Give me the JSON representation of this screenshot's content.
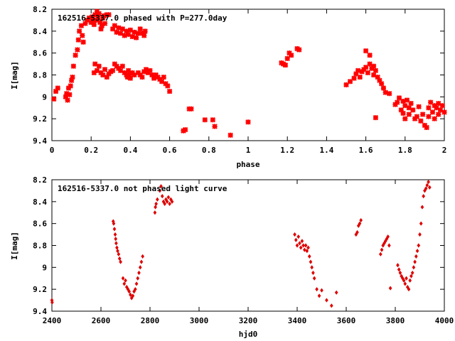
{
  "chart_data": [
    {
      "type": "scatter",
      "title": "162516-5337.0 phased with P=277.0day",
      "xlabel": "phase",
      "ylabel": "I[mag]",
      "xlim": [
        0,
        2
      ],
      "ylim": [
        9.4,
        8.2
      ],
      "y_inverted": true,
      "xticks": [
        "0",
        "0.2",
        "0.4",
        "0.6",
        "0.8",
        "1",
        "1.2",
        "1.4",
        "1.6",
        "1.8",
        "2"
      ],
      "yticks": [
        "8.2",
        "8.4",
        "8.6",
        "8.8",
        "9",
        "9.2",
        "9.4"
      ],
      "marker_color": "#ff0000",
      "marker": "cross",
      "points": [
        [
          0.01,
          9.02
        ],
        [
          0.02,
          8.95
        ],
        [
          0.03,
          8.92
        ],
        [
          0.07,
          9.0
        ],
        [
          0.075,
          8.97
        ],
        [
          0.08,
          9.03
        ],
        [
          0.085,
          8.92
        ],
        [
          0.09,
          8.98
        ],
        [
          0.095,
          8.9
        ],
        [
          0.1,
          8.85
        ],
        [
          0.105,
          8.82
        ],
        [
          0.11,
          8.72
        ],
        [
          0.12,
          8.62
        ],
        [
          0.13,
          8.57
        ],
        [
          0.135,
          8.48
        ],
        [
          0.14,
          8.4
        ],
        [
          0.15,
          8.35
        ],
        [
          0.155,
          8.44
        ],
        [
          0.16,
          8.5
        ],
        [
          0.17,
          8.33
        ],
        [
          0.18,
          8.3
        ],
        [
          0.19,
          8.28
        ],
        [
          0.2,
          8.32
        ],
        [
          0.205,
          8.27
        ],
        [
          0.21,
          8.3
        ],
        [
          0.215,
          8.34
        ],
        [
          0.22,
          8.25
        ],
        [
          0.225,
          8.3
        ],
        [
          0.23,
          8.22
        ],
        [
          0.235,
          8.28
        ],
        [
          0.24,
          8.24
        ],
        [
          0.245,
          8.32
        ],
        [
          0.25,
          8.38
        ],
        [
          0.255,
          8.35
        ],
        [
          0.26,
          8.28
        ],
        [
          0.265,
          8.26
        ],
        [
          0.27,
          8.33
        ],
        [
          0.28,
          8.25
        ],
        [
          0.29,
          8.25
        ],
        [
          0.215,
          8.78
        ],
        [
          0.22,
          8.7
        ],
        [
          0.23,
          8.76
        ],
        [
          0.24,
          8.72
        ],
        [
          0.25,
          8.78
        ],
        [
          0.26,
          8.8
        ],
        [
          0.27,
          8.75
        ],
        [
          0.28,
          8.82
        ],
        [
          0.29,
          8.79
        ],
        [
          0.3,
          8.77
        ],
        [
          0.31,
          8.76
        ],
        [
          0.32,
          8.7
        ],
        [
          0.33,
          8.72
        ],
        [
          0.34,
          8.74
        ],
        [
          0.35,
          8.76
        ],
        [
          0.36,
          8.72
        ],
        [
          0.37,
          8.78
        ],
        [
          0.38,
          8.8
        ],
        [
          0.385,
          8.82
        ],
        [
          0.39,
          8.76
        ],
        [
          0.395,
          8.8
        ],
        [
          0.4,
          8.83
        ],
        [
          0.41,
          8.78
        ],
        [
          0.42,
          8.8
        ],
        [
          0.31,
          8.38
        ],
        [
          0.32,
          8.35
        ],
        [
          0.33,
          8.41
        ],
        [
          0.34,
          8.37
        ],
        [
          0.35,
          8.42
        ],
        [
          0.36,
          8.38
        ],
        [
          0.37,
          8.44
        ],
        [
          0.38,
          8.4
        ],
        [
          0.39,
          8.43
        ],
        [
          0.4,
          8.39
        ],
        [
          0.41,
          8.45
        ],
        [
          0.42,
          8.41
        ],
        [
          0.43,
          8.46
        ],
        [
          0.44,
          8.42
        ],
        [
          0.45,
          8.38
        ],
        [
          0.46,
          8.42
        ],
        [
          0.47,
          8.44
        ],
        [
          0.475,
          8.4
        ],
        [
          0.44,
          8.78
        ],
        [
          0.45,
          8.8
        ],
        [
          0.46,
          8.82
        ],
        [
          0.47,
          8.77
        ],
        [
          0.48,
          8.75
        ],
        [
          0.49,
          8.78
        ],
        [
          0.5,
          8.76
        ],
        [
          0.51,
          8.8
        ],
        [
          0.52,
          8.83
        ],
        [
          0.53,
          8.8
        ],
        [
          0.54,
          8.82
        ],
        [
          0.55,
          8.84
        ],
        [
          0.56,
          8.86
        ],
        [
          0.57,
          8.82
        ],
        [
          0.58,
          8.88
        ],
        [
          0.59,
          8.9
        ],
        [
          0.6,
          8.95
        ],
        [
          0.67,
          9.31
        ],
        [
          0.68,
          9.3
        ],
        [
          0.7,
          9.11
        ],
        [
          0.71,
          9.11
        ],
        [
          0.78,
          9.21
        ],
        [
          0.82,
          9.21
        ],
        [
          0.83,
          9.27
        ],
        [
          0.91,
          9.35
        ],
        [
          1.0,
          9.23
        ],
        [
          1.17,
          8.69
        ],
        [
          1.18,
          8.7
        ],
        [
          1.19,
          8.71
        ],
        [
          1.2,
          8.65
        ],
        [
          1.21,
          8.6
        ],
        [
          1.22,
          8.62
        ],
        [
          1.25,
          8.56
        ],
        [
          1.26,
          8.57
        ],
        [
          1.5,
          8.89
        ],
        [
          1.52,
          8.86
        ],
        [
          1.54,
          8.83
        ],
        [
          1.55,
          8.79
        ],
        [
          1.56,
          8.76
        ],
        [
          1.57,
          8.82
        ],
        [
          1.58,
          8.77
        ],
        [
          1.59,
          8.75
        ],
        [
          1.6,
          8.58
        ],
        [
          1.6,
          8.73
        ],
        [
          1.61,
          8.78
        ],
        [
          1.62,
          8.7
        ],
        [
          1.62,
          8.62
        ],
        [
          1.63,
          8.74
        ],
        [
          1.64,
          8.72
        ],
        [
          1.64,
          8.8
        ],
        [
          1.65,
          8.76
        ],
        [
          1.65,
          9.19
        ],
        [
          1.66,
          8.82
        ],
        [
          1.67,
          8.85
        ],
        [
          1.68,
          8.88
        ],
        [
          1.69,
          8.92
        ],
        [
          1.7,
          8.96
        ],
        [
          1.72,
          8.97
        ],
        [
          1.75,
          9.07
        ],
        [
          1.76,
          9.05
        ],
        [
          1.77,
          9.01
        ],
        [
          1.78,
          9.12
        ],
        [
          1.79,
          9.04
        ],
        [
          1.79,
          9.15
        ],
        [
          1.8,
          9.08
        ],
        [
          1.8,
          9.2
        ],
        [
          1.81,
          9.03
        ],
        [
          1.82,
          9.1
        ],
        [
          1.82,
          9.16
        ],
        [
          1.83,
          9.06
        ],
        [
          1.84,
          9.12
        ],
        [
          1.85,
          9.2
        ],
        [
          1.86,
          9.18
        ],
        [
          1.87,
          9.09
        ],
        [
          1.88,
          9.22
        ],
        [
          1.89,
          9.16
        ],
        [
          1.9,
          9.26
        ],
        [
          1.91,
          9.28
        ],
        [
          1.92,
          9.18
        ],
        [
          1.92,
          9.1
        ],
        [
          1.93,
          9.05
        ],
        [
          1.94,
          9.14
        ],
        [
          1.95,
          9.08
        ],
        [
          1.95,
          9.2
        ],
        [
          1.96,
          9.1
        ],
        [
          1.97,
          9.06
        ],
        [
          1.97,
          9.16
        ],
        [
          1.98,
          9.12
        ],
        [
          1.99,
          9.08
        ],
        [
          2.0,
          9.14
        ]
      ]
    },
    {
      "type": "scatter",
      "title": "162516-5337.0 not phased light curve",
      "xlabel": "hjd0",
      "ylabel": "I[mag]",
      "xlim": [
        2400,
        4000
      ],
      "ylim": [
        9.4,
        8.2
      ],
      "y_inverted": true,
      "xticks": [
        "2400",
        "2600",
        "2800",
        "3000",
        "3200",
        "3400",
        "3600",
        "3800",
        "4000"
      ],
      "yticks": [
        "8.2",
        "8.4",
        "8.6",
        "8.8",
        "9",
        "9.2",
        "9.4"
      ],
      "marker_color": "#dd0000",
      "marker": "diamond",
      "points": [
        [
          2400,
          9.3
        ],
        [
          2401,
          9.32
        ],
        [
          2650,
          8.58
        ],
        [
          2652,
          8.6
        ],
        [
          2655,
          8.65
        ],
        [
          2658,
          8.7
        ],
        [
          2660,
          8.74
        ],
        [
          2662,
          8.78
        ],
        [
          2665,
          8.82
        ],
        [
          2668,
          8.85
        ],
        [
          2672,
          8.88
        ],
        [
          2676,
          8.92
        ],
        [
          2680,
          8.95
        ],
        [
          2690,
          9.1
        ],
        [
          2695,
          9.15
        ],
        [
          2700,
          9.12
        ],
        [
          2705,
          9.18
        ],
        [
          2710,
          9.2
        ],
        [
          2715,
          9.22
        ],
        [
          2720,
          9.25
        ],
        [
          2725,
          9.28
        ],
        [
          2730,
          9.26
        ],
        [
          2735,
          9.22
        ],
        [
          2740,
          9.2
        ],
        [
          2745,
          9.15
        ],
        [
          2750,
          9.1
        ],
        [
          2755,
          9.05
        ],
        [
          2760,
          9.0
        ],
        [
          2765,
          8.95
        ],
        [
          2770,
          8.9
        ],
        [
          2820,
          8.5
        ],
        [
          2822,
          8.45
        ],
        [
          2825,
          8.42
        ],
        [
          2830,
          8.38
        ],
        [
          2840,
          8.3
        ],
        [
          2845,
          8.26
        ],
        [
          2850,
          8.35
        ],
        [
          2855,
          8.4
        ],
        [
          2860,
          8.42
        ],
        [
          2865,
          8.38
        ],
        [
          2870,
          8.4
        ],
        [
          2875,
          8.36
        ],
        [
          2880,
          8.42
        ],
        [
          2885,
          8.38
        ],
        [
          2890,
          8.4
        ],
        [
          3390,
          8.7
        ],
        [
          3395,
          8.75
        ],
        [
          3400,
          8.8
        ],
        [
          3405,
          8.72
        ],
        [
          3410,
          8.78
        ],
        [
          3415,
          8.82
        ],
        [
          3420,
          8.76
        ],
        [
          3425,
          8.8
        ],
        [
          3430,
          8.84
        ],
        [
          3435,
          8.8
        ],
        [
          3440,
          8.85
        ],
        [
          3445,
          8.82
        ],
        [
          3450,
          8.9
        ],
        [
          3455,
          8.95
        ],
        [
          3460,
          9.0
        ],
        [
          3465,
          9.05
        ],
        [
          3470,
          9.1
        ],
        [
          3480,
          9.2
        ],
        [
          3490,
          9.26
        ],
        [
          3500,
          9.21
        ],
        [
          3520,
          9.3
        ],
        [
          3540,
          9.35
        ],
        [
          3560,
          9.23
        ],
        [
          3640,
          8.7
        ],
        [
          3645,
          8.68
        ],
        [
          3650,
          8.62
        ],
        [
          3655,
          8.6
        ],
        [
          3660,
          8.57
        ],
        [
          3740,
          8.88
        ],
        [
          3745,
          8.84
        ],
        [
          3750,
          8.8
        ],
        [
          3755,
          8.78
        ],
        [
          3760,
          8.76
        ],
        [
          3765,
          8.74
        ],
        [
          3770,
          8.72
        ],
        [
          3775,
          8.8
        ],
        [
          3780,
          9.19
        ],
        [
          3810,
          8.98
        ],
        [
          3815,
          9.02
        ],
        [
          3820,
          9.05
        ],
        [
          3825,
          9.08
        ],
        [
          3830,
          9.1
        ],
        [
          3835,
          9.12
        ],
        [
          3840,
          9.15
        ],
        [
          3845,
          9.1
        ],
        [
          3850,
          9.18
        ],
        [
          3855,
          9.2
        ],
        [
          3860,
          9.12
        ],
        [
          3865,
          9.08
        ],
        [
          3870,
          9.05
        ],
        [
          3875,
          9.0
        ],
        [
          3880,
          8.95
        ],
        [
          3885,
          8.9
        ],
        [
          3890,
          8.85
        ],
        [
          3895,
          8.8
        ],
        [
          3900,
          8.7
        ],
        [
          3905,
          8.6
        ],
        [
          3910,
          8.45
        ],
        [
          3915,
          8.35
        ],
        [
          3920,
          8.3
        ],
        [
          3925,
          8.28
        ],
        [
          3930,
          8.25
        ],
        [
          3935,
          8.22
        ],
        [
          3940,
          8.27
        ]
      ]
    }
  ]
}
